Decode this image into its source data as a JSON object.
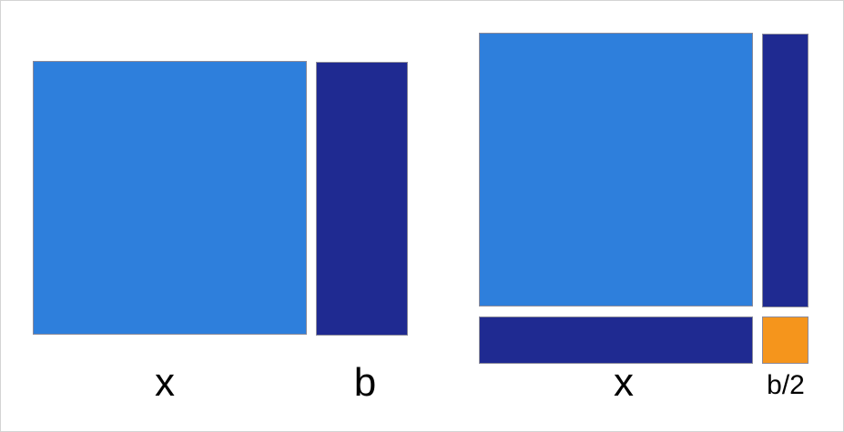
{
  "colors": {
    "square": "#2e7fdc",
    "rectangle": "#1f2a91",
    "small_square": "#f5951c"
  },
  "left_figure": {
    "x_label": "x",
    "b_label": "b"
  },
  "right_figure": {
    "x_label": "x",
    "half_b_label": "b/2"
  }
}
